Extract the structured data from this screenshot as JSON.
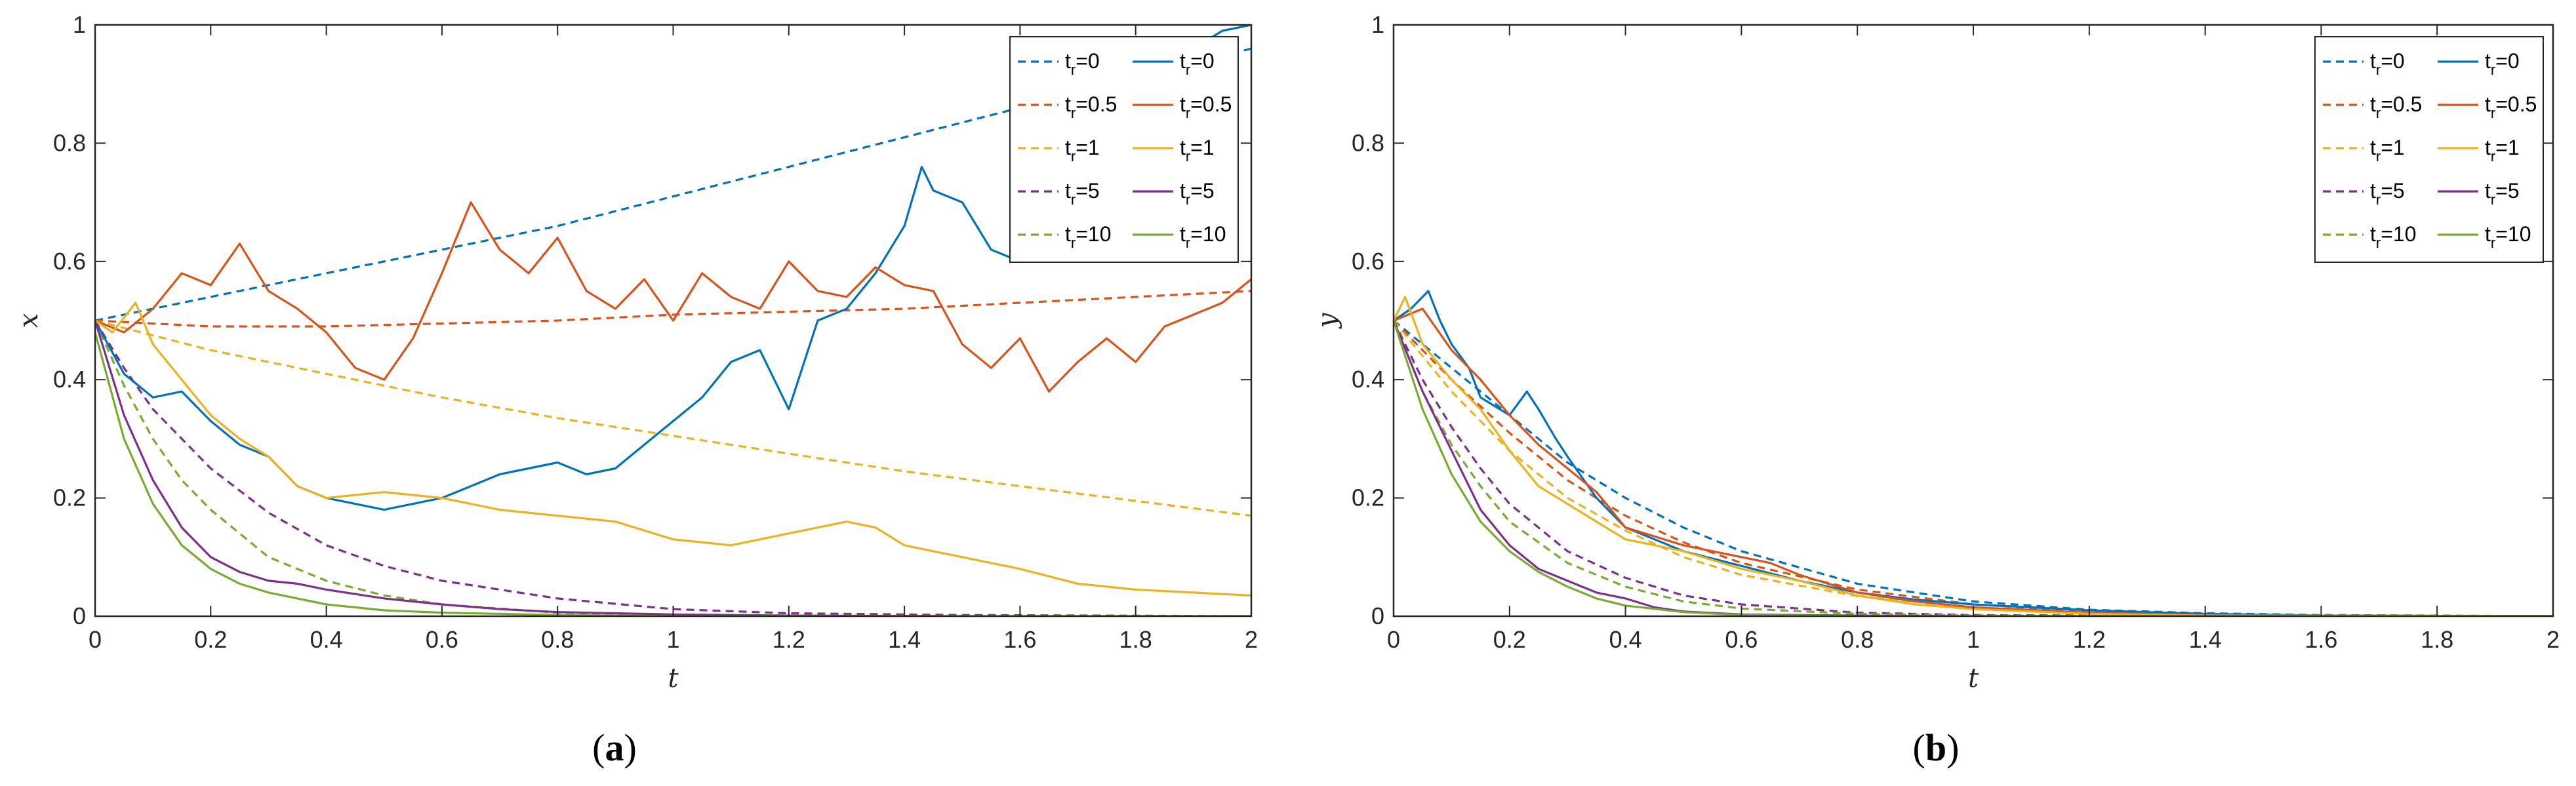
{
  "figure": {
    "panel_labels": [
      {
        "open": "(",
        "letter": "a",
        "close": ")"
      },
      {
        "open": "(",
        "letter": "b",
        "close": ")"
      }
    ]
  },
  "colors": {
    "blue": "#0072BD",
    "orange": "#D95319",
    "yellow": "#EDB120",
    "purple": "#7E2F8E",
    "green": "#77AC30"
  },
  "chart_data": [
    {
      "type": "line",
      "panel": "a",
      "xlabel": "t",
      "ylabel": "x",
      "xlim": [
        0,
        2
      ],
      "ylim": [
        0,
        1
      ],
      "xticks": [
        0,
        0.2,
        0.4,
        0.6,
        0.8,
        1,
        1.2,
        1.4,
        1.6,
        1.8,
        2
      ],
      "xtick_labels": [
        "0",
        "0.2",
        "0.4",
        "0.6",
        "0.8",
        "1",
        "1.2",
        "1.4",
        "1.6",
        "1.8",
        "2"
      ],
      "yticks": [
        0,
        0.2,
        0.4,
        0.6,
        0.8,
        1
      ],
      "ytick_labels": [
        "0",
        "0.2",
        "0.4",
        "0.6",
        "0.8",
        "1"
      ],
      "legend_position": "top-right",
      "series": [
        {
          "name": "t_r=0",
          "base": "t",
          "sub": "r",
          "suffix": "=0",
          "style": "dashed",
          "color": "#0072BD",
          "x": [
            0,
            0.2,
            0.4,
            0.6,
            0.8,
            1.0,
            1.2,
            1.4,
            1.6,
            1.8,
            2.0
          ],
          "y": [
            0.5,
            0.54,
            0.58,
            0.62,
            0.66,
            0.71,
            0.76,
            0.81,
            0.86,
            0.91,
            0.96
          ]
        },
        {
          "name": "t_r=0.5",
          "base": "t",
          "sub": "r",
          "suffix": "=0.5",
          "style": "dashed",
          "color": "#D95319",
          "x": [
            0,
            0.2,
            0.4,
            0.6,
            0.8,
            1.0,
            1.2,
            1.4,
            1.6,
            1.8,
            2.0
          ],
          "y": [
            0.5,
            0.49,
            0.49,
            0.495,
            0.5,
            0.51,
            0.515,
            0.52,
            0.53,
            0.54,
            0.55
          ]
        },
        {
          "name": "t_r=1",
          "base": "t",
          "sub": "r",
          "suffix": "=1",
          "style": "dashed",
          "color": "#EDB120",
          "x": [
            0,
            0.2,
            0.4,
            0.6,
            0.8,
            1.0,
            1.2,
            1.4,
            1.6,
            1.8,
            2.0
          ],
          "y": [
            0.5,
            0.45,
            0.41,
            0.37,
            0.335,
            0.305,
            0.275,
            0.245,
            0.22,
            0.195,
            0.17
          ]
        },
        {
          "name": "t_r=5",
          "base": "t",
          "sub": "r",
          "suffix": "=5",
          "style": "dashed",
          "color": "#7E2F8E",
          "x": [
            0,
            0.05,
            0.1,
            0.15,
            0.2,
            0.3,
            0.4,
            0.5,
            0.6,
            0.8,
            1.0,
            1.2,
            1.5,
            2.0
          ],
          "y": [
            0.5,
            0.42,
            0.35,
            0.3,
            0.25,
            0.175,
            0.12,
            0.085,
            0.06,
            0.03,
            0.012,
            0.005,
            0.002,
            0.0
          ]
        },
        {
          "name": "t_r=10",
          "base": "t",
          "sub": "r",
          "suffix": "=10",
          "style": "dashed",
          "color": "#77AC30",
          "x": [
            0,
            0.05,
            0.1,
            0.15,
            0.2,
            0.3,
            0.4,
            0.5,
            0.6,
            0.8,
            1.0,
            1.5,
            2.0
          ],
          "y": [
            0.5,
            0.39,
            0.3,
            0.23,
            0.18,
            0.1,
            0.06,
            0.035,
            0.02,
            0.006,
            0.002,
            0.0,
            0.0
          ]
        },
        {
          "name": "t_r=0",
          "base": "t",
          "sub": "r",
          "suffix": "=0",
          "style": "solid",
          "color": "#0072BD",
          "x": [
            0,
            0.05,
            0.1,
            0.15,
            0.2,
            0.25,
            0.3,
            0.35,
            0.4,
            0.45,
            0.5,
            0.55,
            0.6,
            0.65,
            0.7,
            0.75,
            0.8,
            0.85,
            0.9,
            0.95,
            1.0,
            1.05,
            1.1,
            1.15,
            1.2,
            1.25,
            1.3,
            1.35,
            1.4,
            1.43,
            1.45,
            1.5,
            1.55,
            1.6,
            1.65,
            1.7,
            1.75,
            1.8,
            1.85,
            1.9,
            1.95,
            2.0
          ],
          "y": [
            0.5,
            0.41,
            0.37,
            0.38,
            0.33,
            0.29,
            0.27,
            0.22,
            0.2,
            0.19,
            0.18,
            0.19,
            0.2,
            0.22,
            0.24,
            0.25,
            0.26,
            0.24,
            0.25,
            0.29,
            0.33,
            0.37,
            0.43,
            0.45,
            0.35,
            0.5,
            0.52,
            0.58,
            0.66,
            0.76,
            0.72,
            0.7,
            0.62,
            0.6,
            0.66,
            0.72,
            0.8,
            0.86,
            0.9,
            0.96,
            0.99,
            1.0
          ]
        },
        {
          "name": "t_r=0.5",
          "base": "t",
          "sub": "r",
          "suffix": "=0.5",
          "style": "solid",
          "color": "#D95319",
          "x": [
            0,
            0.05,
            0.1,
            0.15,
            0.2,
            0.25,
            0.3,
            0.35,
            0.4,
            0.45,
            0.5,
            0.55,
            0.6,
            0.65,
            0.7,
            0.75,
            0.8,
            0.85,
            0.9,
            0.95,
            1.0,
            1.05,
            1.1,
            1.15,
            1.2,
            1.25,
            1.3,
            1.35,
            1.4,
            1.45,
            1.5,
            1.55,
            1.6,
            1.65,
            1.7,
            1.75,
            1.8,
            1.85,
            1.9,
            1.95,
            2.0
          ],
          "y": [
            0.5,
            0.48,
            0.52,
            0.58,
            0.56,
            0.63,
            0.55,
            0.52,
            0.48,
            0.42,
            0.4,
            0.47,
            0.58,
            0.7,
            0.62,
            0.58,
            0.64,
            0.55,
            0.52,
            0.57,
            0.5,
            0.58,
            0.54,
            0.52,
            0.6,
            0.55,
            0.54,
            0.59,
            0.56,
            0.55,
            0.46,
            0.42,
            0.47,
            0.38,
            0.43,
            0.47,
            0.43,
            0.49,
            0.51,
            0.53,
            0.57
          ]
        },
        {
          "name": "t_r=1",
          "base": "t",
          "sub": "r",
          "suffix": "=1",
          "style": "solid",
          "color": "#EDB120",
          "x": [
            0,
            0.03,
            0.07,
            0.1,
            0.15,
            0.2,
            0.25,
            0.3,
            0.35,
            0.4,
            0.5,
            0.6,
            0.7,
            0.8,
            0.9,
            1.0,
            1.1,
            1.2,
            1.25,
            1.3,
            1.35,
            1.4,
            1.5,
            1.6,
            1.7,
            1.8,
            1.9,
            2.0
          ],
          "y": [
            0.5,
            0.48,
            0.53,
            0.46,
            0.4,
            0.34,
            0.3,
            0.27,
            0.22,
            0.2,
            0.21,
            0.2,
            0.18,
            0.17,
            0.16,
            0.13,
            0.12,
            0.14,
            0.15,
            0.16,
            0.15,
            0.12,
            0.1,
            0.08,
            0.055,
            0.045,
            0.04,
            0.035
          ]
        },
        {
          "name": "t_r=5",
          "base": "t",
          "sub": "r",
          "suffix": "=5",
          "style": "solid",
          "color": "#7E2F8E",
          "x": [
            0,
            0.05,
            0.1,
            0.15,
            0.2,
            0.25,
            0.3,
            0.35,
            0.4,
            0.5,
            0.6,
            0.7,
            0.8,
            1.0,
            1.2,
            1.5,
            2.0
          ],
          "y": [
            0.5,
            0.34,
            0.23,
            0.15,
            0.1,
            0.075,
            0.06,
            0.055,
            0.045,
            0.03,
            0.02,
            0.012,
            0.007,
            0.003,
            0.001,
            0.0,
            0.0
          ]
        },
        {
          "name": "t_r=10",
          "base": "t",
          "sub": "r",
          "suffix": "=10",
          "style": "solid",
          "color": "#77AC30",
          "x": [
            0,
            0.05,
            0.1,
            0.15,
            0.2,
            0.25,
            0.3,
            0.35,
            0.4,
            0.5,
            0.6,
            0.8,
            1.0,
            1.5,
            2.0
          ],
          "y": [
            0.48,
            0.3,
            0.19,
            0.12,
            0.08,
            0.055,
            0.04,
            0.03,
            0.02,
            0.01,
            0.006,
            0.002,
            0.0,
            0.0,
            0.0
          ]
        }
      ]
    },
    {
      "type": "line",
      "panel": "b",
      "xlabel": "t",
      "ylabel": "y",
      "xlim": [
        0,
        2
      ],
      "ylim": [
        0,
        1
      ],
      "xticks": [
        0,
        0.2,
        0.4,
        0.6,
        0.8,
        1,
        1.2,
        1.4,
        1.6,
        1.8,
        2
      ],
      "xtick_labels": [
        "0",
        "0.2",
        "0.4",
        "0.6",
        "0.8",
        "1",
        "1.2",
        "1.4",
        "1.6",
        "1.8",
        "2"
      ],
      "yticks": [
        0,
        0.2,
        0.4,
        0.6,
        0.8,
        1
      ],
      "ytick_labels": [
        "0",
        "0.2",
        "0.4",
        "0.6",
        "0.8",
        "1"
      ],
      "legend_position": "top-right",
      "series": [
        {
          "name": "t_r=0",
          "base": "t",
          "sub": "r",
          "suffix": "=0",
          "style": "dashed",
          "color": "#0072BD",
          "x": [
            0,
            0.1,
            0.2,
            0.3,
            0.4,
            0.5,
            0.6,
            0.8,
            1.0,
            1.2,
            1.4,
            1.6,
            1.8,
            2.0
          ],
          "y": [
            0.5,
            0.42,
            0.34,
            0.26,
            0.2,
            0.15,
            0.11,
            0.055,
            0.025,
            0.011,
            0.005,
            0.002,
            0.001,
            0.0
          ]
        },
        {
          "name": "t_r=0.5",
          "base": "t",
          "sub": "r",
          "suffix": "=0.5",
          "style": "dashed",
          "color": "#D95319",
          "x": [
            0,
            0.1,
            0.2,
            0.3,
            0.4,
            0.5,
            0.6,
            0.8,
            1.0,
            1.2,
            1.4,
            1.6,
            2.0
          ],
          "y": [
            0.5,
            0.4,
            0.31,
            0.23,
            0.17,
            0.125,
            0.09,
            0.045,
            0.02,
            0.008,
            0.003,
            0.001,
            0.0
          ]
        },
        {
          "name": "t_r=1",
          "base": "t",
          "sub": "r",
          "suffix": "=1",
          "style": "dashed",
          "color": "#EDB120",
          "x": [
            0,
            0.1,
            0.2,
            0.3,
            0.4,
            0.5,
            0.6,
            0.8,
            1.0,
            1.2,
            1.5,
            2.0
          ],
          "y": [
            0.5,
            0.38,
            0.28,
            0.2,
            0.145,
            0.1,
            0.07,
            0.034,
            0.015,
            0.006,
            0.001,
            0.0
          ]
        },
        {
          "name": "t_r=5",
          "base": "t",
          "sub": "r",
          "suffix": "=5",
          "style": "dashed",
          "color": "#7E2F8E",
          "x": [
            0,
            0.05,
            0.1,
            0.15,
            0.2,
            0.3,
            0.4,
            0.5,
            0.6,
            0.8,
            1.0,
            1.5,
            2.0
          ],
          "y": [
            0.5,
            0.4,
            0.32,
            0.25,
            0.19,
            0.11,
            0.065,
            0.035,
            0.02,
            0.006,
            0.002,
            0.0,
            0.0
          ]
        },
        {
          "name": "t_r=10",
          "base": "t",
          "sub": "r",
          "suffix": "=10",
          "style": "dashed",
          "color": "#77AC30",
          "x": [
            0,
            0.05,
            0.1,
            0.15,
            0.2,
            0.3,
            0.4,
            0.5,
            0.6,
            0.8,
            1.0,
            1.5,
            2.0
          ],
          "y": [
            0.5,
            0.38,
            0.29,
            0.22,
            0.16,
            0.09,
            0.05,
            0.025,
            0.013,
            0.004,
            0.001,
            0.0,
            0.0
          ]
        },
        {
          "name": "t_r=0",
          "base": "t",
          "sub": "r",
          "suffix": "=0",
          "style": "solid",
          "color": "#0072BD",
          "x": [
            0,
            0.03,
            0.06,
            0.08,
            0.1,
            0.13,
            0.15,
            0.2,
            0.23,
            0.25,
            0.28,
            0.3,
            0.35,
            0.4,
            0.45,
            0.5,
            0.6,
            0.7,
            0.8,
            0.9,
            1.0,
            1.1,
            1.2,
            1.4,
            1.6,
            2.0
          ],
          "y": [
            0.5,
            0.52,
            0.55,
            0.5,
            0.46,
            0.42,
            0.37,
            0.34,
            0.38,
            0.35,
            0.3,
            0.27,
            0.2,
            0.15,
            0.13,
            0.11,
            0.085,
            0.06,
            0.04,
            0.028,
            0.02,
            0.015,
            0.01,
            0.004,
            0.001,
            0.0
          ]
        },
        {
          "name": "t_r=0.5",
          "base": "t",
          "sub": "r",
          "suffix": "=0.5",
          "style": "solid",
          "color": "#D95319",
          "x": [
            0,
            0.05,
            0.1,
            0.15,
            0.2,
            0.25,
            0.3,
            0.35,
            0.4,
            0.5,
            0.6,
            0.65,
            0.7,
            0.8,
            0.9,
            1.0,
            1.2,
            1.4,
            1.6,
            2.0
          ],
          "y": [
            0.5,
            0.52,
            0.45,
            0.4,
            0.34,
            0.29,
            0.25,
            0.21,
            0.15,
            0.12,
            0.1,
            0.09,
            0.07,
            0.04,
            0.025,
            0.015,
            0.006,
            0.002,
            0.001,
            0.0
          ]
        },
        {
          "name": "t_r=1",
          "base": "t",
          "sub": "r",
          "suffix": "=1",
          "style": "solid",
          "color": "#EDB120",
          "x": [
            0,
            0.02,
            0.05,
            0.1,
            0.15,
            0.2,
            0.25,
            0.3,
            0.35,
            0.4,
            0.5,
            0.6,
            0.7,
            0.8,
            0.9,
            1.0,
            1.2,
            1.4,
            2.0
          ],
          "y": [
            0.5,
            0.54,
            0.46,
            0.4,
            0.35,
            0.28,
            0.22,
            0.19,
            0.16,
            0.13,
            0.11,
            0.08,
            0.06,
            0.035,
            0.02,
            0.012,
            0.004,
            0.001,
            0.0
          ]
        },
        {
          "name": "t_r=5",
          "base": "t",
          "sub": "r",
          "suffix": "=5",
          "style": "solid",
          "color": "#7E2F8E",
          "x": [
            0,
            0.05,
            0.1,
            0.15,
            0.2,
            0.25,
            0.3,
            0.35,
            0.4,
            0.45,
            0.5,
            0.6,
            0.8,
            1.0,
            2.0
          ],
          "y": [
            0.5,
            0.38,
            0.28,
            0.18,
            0.12,
            0.08,
            0.06,
            0.04,
            0.03,
            0.015,
            0.008,
            0.003,
            0.001,
            0.0,
            0.0
          ]
        },
        {
          "name": "t_r=10",
          "base": "t",
          "sub": "r",
          "suffix": "=10",
          "style": "solid",
          "color": "#77AC30",
          "x": [
            0,
            0.05,
            0.1,
            0.15,
            0.2,
            0.25,
            0.3,
            0.35,
            0.4,
            0.5,
            0.6,
            0.8,
            1.0,
            2.0
          ],
          "y": [
            0.5,
            0.35,
            0.24,
            0.16,
            0.11,
            0.075,
            0.05,
            0.03,
            0.018,
            0.007,
            0.002,
            0.0,
            0.0,
            0.0
          ]
        }
      ]
    }
  ]
}
